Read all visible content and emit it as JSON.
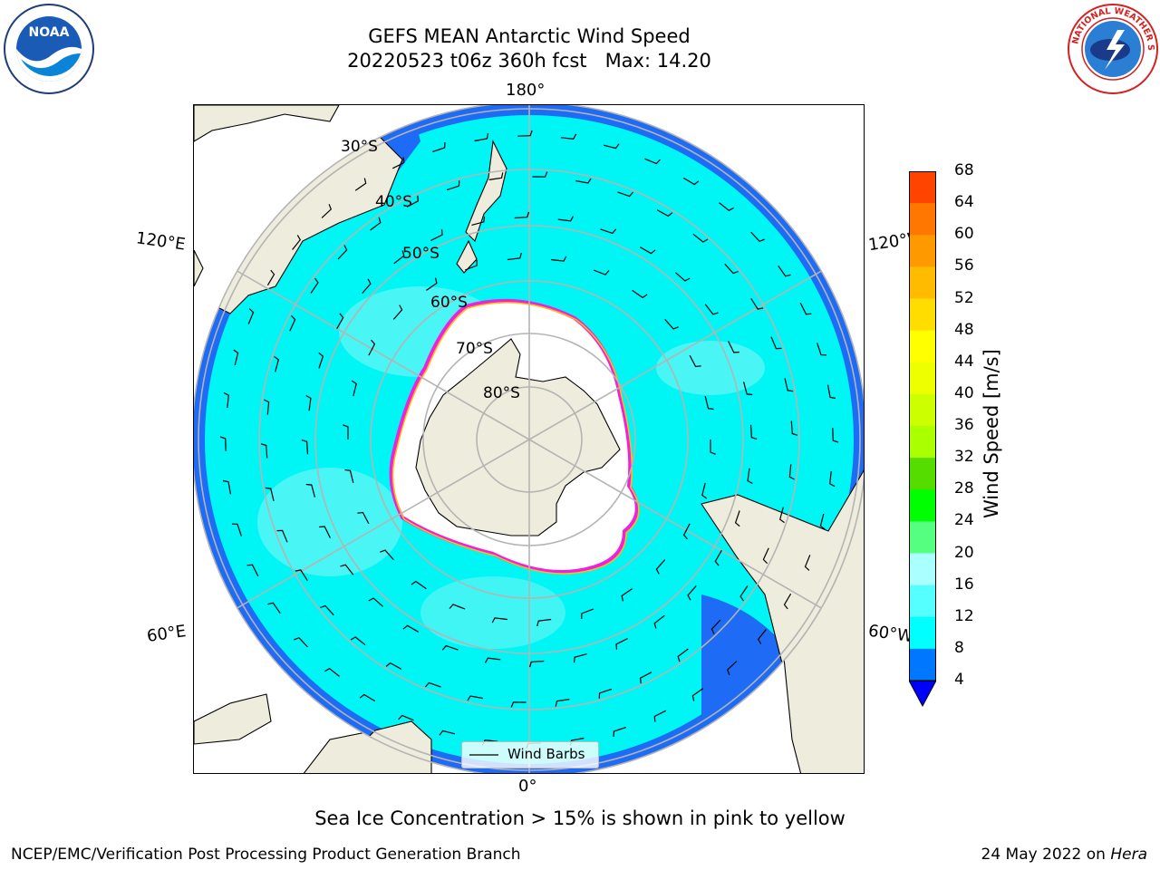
{
  "title": {
    "line1": "GEFS MEAN Antarctic Wind Speed",
    "line2": "20220523 t06z 360h fcst   Max: 14.20"
  },
  "logos": {
    "left": {
      "icon": "noaa-logo",
      "text": "NOAA"
    },
    "right": {
      "icon": "nws-logo",
      "text": "NATIONAL WEATHER SERVICE"
    }
  },
  "map": {
    "projection": "south-polar-stereographic",
    "longitude_labels": {
      "top": "180°",
      "bottom": "0°",
      "left_upper": "120°E",
      "left_lower": "60°E",
      "right_upper": "120°W",
      "right_lower": "60°W"
    },
    "latitude_labels": [
      "30°S",
      "40°S",
      "50°S",
      "60°S",
      "70°S",
      "80°S"
    ],
    "colors": {
      "land": "#eeecdc",
      "ocean_low": "#1e6cf5",
      "ocean_mid": "#00f5f5",
      "ocean_light": "#5cf5f5",
      "ice_edge": "#f020e0",
      "ice_inner": "#ffffff",
      "grid": "#b4b4b4"
    }
  },
  "legend": {
    "label": "Wind Barbs"
  },
  "colorbar": {
    "label": "Wind Speed [m/s]",
    "ticks": [
      "4",
      "8",
      "12",
      "16",
      "20",
      "24",
      "28",
      "32",
      "36",
      "40",
      "44",
      "48",
      "52",
      "56",
      "60",
      "64",
      "68"
    ],
    "colors": [
      "#0077ff",
      "#00ffff",
      "#55ffff",
      "#aaffff",
      "#55ff7f",
      "#00ff00",
      "#55dd00",
      "#aaff00",
      "#ccff00",
      "#eeff00",
      "#ffff00",
      "#ffdd00",
      "#ffbb00",
      "#ff9900",
      "#ff7700",
      "#ff4400",
      "#ff0000"
    ],
    "extend_color": "#0000ff"
  },
  "caption": "Sea Ice Concentration > 15% is shown in pink to yellow",
  "footer": {
    "left": "NCEP/EMC/Verification Post Processing Product Generation Branch",
    "right_date": "24 May 2022 on",
    "right_host": "Hera"
  }
}
